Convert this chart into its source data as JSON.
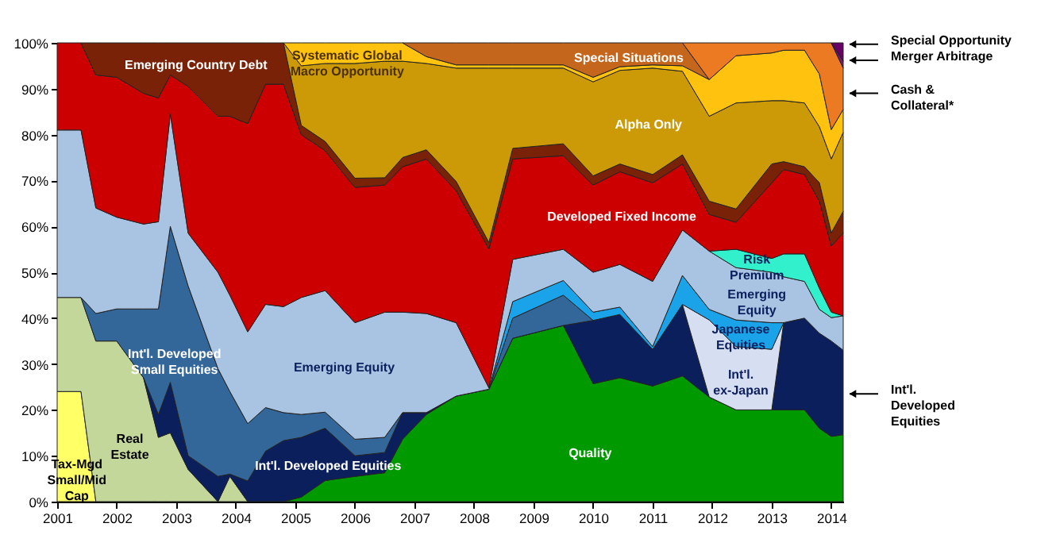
{
  "chart_data": {
    "type": "area",
    "stacked": true,
    "legend": "right",
    "grid": false,
    "x": [
      2001.0,
      2001.4,
      2001.65,
      2002.0,
      2002.45,
      2002.7,
      2002.9,
      2003.2,
      2003.7,
      2003.9,
      2004.2,
      2004.5,
      2004.8,
      2005.1,
      2005.5,
      2006.0,
      2006.5,
      2006.8,
      2007.2,
      2007.7,
      2008.25,
      2008.65,
      2009.5,
      2010.0,
      2010.45,
      2011.0,
      2011.5,
      2011.95,
      2012.4,
      2013.0,
      2013.2,
      2013.55,
      2013.8,
      2014.0,
      2014.2
    ],
    "xlim": [
      2001,
      2014.2
    ],
    "xticks": [
      2001,
      2002,
      2003,
      2004,
      2005,
      2006,
      2007,
      2008,
      2009,
      2010,
      2011,
      2012,
      2013,
      2014
    ],
    "ylim": [
      0,
      100
    ],
    "yticks": [
      {
        "value": 0,
        "label": "0%"
      },
      {
        "value": 10,
        "label": "10%"
      },
      {
        "value": 20,
        "label": "20%"
      },
      {
        "value": 30,
        "label": "30%"
      },
      {
        "value": 40,
        "label": "40%"
      },
      {
        "value": 50,
        "label": "50%"
      },
      {
        "value": 60,
        "label": "60%"
      },
      {
        "value": 70,
        "label": "70%"
      },
      {
        "value": 80,
        "label": "80%"
      },
      {
        "value": 90,
        "label": "90%"
      },
      {
        "value": 100,
        "label": "100%"
      }
    ],
    "series": [
      {
        "name": "Quality",
        "color": "#009a00",
        "values": [
          null,
          null,
          null,
          null,
          null,
          null,
          null,
          null,
          null,
          null,
          null,
          null,
          0,
          1,
          4.6,
          5.5,
          6.3,
          13.6,
          19,
          23,
          24.5,
          35.6,
          38.4,
          25.7,
          27,
          25.2,
          27.4,
          22.8,
          20,
          20,
          20,
          20,
          16,
          14.2,
          14.6
        ]
      },
      {
        "name": "Tax-Mgd Small/Mid Cap",
        "color": "#ffff66",
        "values": [
          24,
          24,
          0,
          null,
          null,
          null,
          null,
          null,
          null,
          null,
          null,
          null,
          null,
          null,
          null,
          null,
          null,
          null,
          null,
          null,
          null,
          null,
          null,
          null,
          null,
          null,
          null,
          null,
          null,
          null,
          null,
          null,
          null,
          null,
          null
        ]
      },
      {
        "name": "Real Estate",
        "color": "#c4d79b",
        "values": [
          20.5,
          20.5,
          35,
          35,
          27,
          14,
          15,
          7,
          0,
          5.5,
          0,
          null,
          null,
          null,
          null,
          null,
          null,
          null,
          null,
          null,
          null,
          null,
          null,
          null,
          null,
          null,
          null,
          null,
          null,
          null,
          null,
          null,
          null,
          null,
          null
        ]
      },
      {
        "name": "Int'l. Developed Equities",
        "color": "#0b1f5c",
        "values": [
          null,
          null,
          null,
          null,
          0,
          5,
          11,
          3,
          5.5,
          0.5,
          4.5,
          11,
          13.3,
          13,
          11.4,
          4.5,
          4.4,
          5.8,
          0.4,
          0,
          0,
          0,
          0,
          13.8,
          13.8,
          8,
          15.6,
          0,
          0,
          0,
          19,
          20,
          20.7,
          20.8,
          18.4
        ]
      },
      {
        "name": "Int'l. Developed Small Equities",
        "color": "#336699",
        "values": [
          null,
          0,
          6,
          7,
          15,
          23,
          34,
          37,
          23.5,
          18,
          12.5,
          9.5,
          6.1,
          5,
          3.5,
          3.6,
          3.3,
          0,
          0,
          0,
          0,
          4.4,
          6.6,
          0,
          null,
          null,
          null,
          null,
          null,
          null,
          null,
          null,
          null,
          null,
          null
        ]
      },
      {
        "name": "Int'l. ex-Japan",
        "color": "#d6def2",
        "values": [
          null,
          null,
          null,
          null,
          null,
          null,
          null,
          null,
          null,
          null,
          null,
          null,
          null,
          null,
          null,
          null,
          null,
          null,
          null,
          null,
          null,
          null,
          null,
          null,
          null,
          null,
          0,
          16.8,
          13.8,
          13.2,
          0,
          null,
          null,
          null,
          null
        ]
      },
      {
        "name": "Japanese Equities",
        "color": "#1aa3e8",
        "values": [
          null,
          null,
          null,
          null,
          null,
          null,
          null,
          null,
          null,
          null,
          null,
          null,
          null,
          null,
          null,
          null,
          null,
          null,
          null,
          null,
          0,
          3.6,
          3.2,
          1.8,
          1.6,
          0.6,
          6.3,
          2.3,
          5.8,
          5.8,
          0,
          null,
          null,
          null,
          null
        ]
      },
      {
        "name": "Emerging Equity",
        "color": "#a9c3e3",
        "values": [
          36.5,
          36.5,
          23,
          20,
          18.5,
          19,
          24.5,
          11.5,
          21,
          21,
          20,
          22.5,
          23.1,
          25.5,
          26.5,
          25.4,
          27.3,
          21.9,
          21.6,
          16,
          0.3,
          9.2,
          6.8,
          8.7,
          9.3,
          14.2,
          9.9,
          12.7,
          11.4,
          11,
          10,
          8,
          5.2,
          5.1,
          7.5
        ]
      },
      {
        "name": "Risk Premium",
        "color": "#33f0cc",
        "values": [
          null,
          null,
          null,
          null,
          null,
          null,
          null,
          null,
          null,
          null,
          null,
          null,
          null,
          null,
          null,
          null,
          null,
          null,
          null,
          null,
          null,
          null,
          null,
          null,
          null,
          null,
          null,
          0,
          4,
          3,
          5,
          6,
          4.6,
          1.2,
          0
        ]
      },
      {
        "name": "Developed Fixed Income",
        "color": "#cc0000",
        "values": [
          19,
          19,
          29,
          30.5,
          28.5,
          27,
          8.5,
          32,
          34,
          39,
          45.4,
          48,
          48.5,
          35.5,
          30.5,
          29.5,
          27.7,
          31.7,
          33.7,
          28.8,
          30.3,
          21.9,
          20.4,
          19,
          20.2,
          21.5,
          14.4,
          8,
          5.9,
          16.5,
          18.4,
          17.3,
          19,
          14.4,
          18.1
        ]
      },
      {
        "name": "Emerging Country Debt",
        "color": "#7a2208",
        "values": [
          null,
          0,
          7,
          7.5,
          11,
          12,
          7,
          9.5,
          16,
          16,
          17.6,
          9,
          9,
          2,
          2,
          2,
          1.6,
          2,
          2,
          2,
          1.4,
          2.3,
          2.6,
          2,
          1.7,
          1.8,
          2,
          2.9,
          2.9,
          4.1,
          1.7,
          1.7,
          4,
          2.9,
          4.7
        ]
      },
      {
        "name": "Alpha Only",
        "color": "#cc9a06",
        "values": [
          null,
          null,
          null,
          null,
          null,
          null,
          null,
          null,
          null,
          null,
          null,
          null,
          0,
          13,
          17,
          25,
          25.4,
          21,
          18.8,
          24.7,
          38,
          17.5,
          16.5,
          20.5,
          20.4,
          23.2,
          18.2,
          18.5,
          23.1,
          13.8,
          13.3,
          13.9,
          12.2,
          16.1,
          17.2
        ]
      },
      {
        "name": "Systematic Global Macro Opportunity",
        "color": "#ffc20e",
        "values": [
          null,
          null,
          null,
          null,
          null,
          null,
          null,
          null,
          null,
          null,
          null,
          null,
          0,
          5,
          4.5,
          4.5,
          4,
          4,
          1.5,
          0.7,
          0.7,
          0.7,
          0.7,
          1,
          0.8,
          0.7,
          1.2,
          8,
          10.3,
          10.4,
          11,
          11.5,
          11.5,
          6.4,
          5
        ]
      },
      {
        "name": "Special Situations",
        "color": "#c4661c",
        "values": [
          null,
          null,
          null,
          null,
          null,
          null,
          null,
          null,
          null,
          null,
          null,
          null,
          null,
          null,
          null,
          null,
          null,
          0,
          3,
          4.8,
          4.8,
          4.8,
          4.8,
          7.5,
          5.2,
          4.8,
          5,
          0,
          null,
          null,
          null,
          null,
          null,
          null,
          null
        ]
      },
      {
        "name": "Cash & Collateral*",
        "color": "#ec7a22",
        "values": [
          null,
          null,
          null,
          null,
          null,
          null,
          null,
          null,
          null,
          null,
          null,
          null,
          null,
          null,
          null,
          null,
          null,
          null,
          null,
          null,
          null,
          null,
          null,
          null,
          null,
          null,
          0,
          8,
          2.8,
          2.2,
          1.6,
          1.6,
          6.8,
          18.9,
          9
        ]
      },
      {
        "name": "Merger Arbitrage",
        "color": "#7a1a6e",
        "values": [
          null,
          null,
          null,
          null,
          null,
          null,
          null,
          null,
          null,
          null,
          null,
          null,
          null,
          null,
          null,
          null,
          null,
          null,
          null,
          null,
          null,
          null,
          null,
          null,
          null,
          null,
          null,
          null,
          null,
          null,
          null,
          null,
          null,
          0,
          1.5
        ]
      },
      {
        "name": "Special Opportunity",
        "color": "#660066",
        "values": [
          null,
          null,
          null,
          null,
          null,
          null,
          null,
          null,
          null,
          null,
          null,
          null,
          null,
          null,
          null,
          null,
          null,
          null,
          null,
          null,
          null,
          null,
          null,
          null,
          null,
          null,
          null,
          null,
          null,
          null,
          null,
          null,
          null,
          0,
          4
        ]
      }
    ]
  }
}
